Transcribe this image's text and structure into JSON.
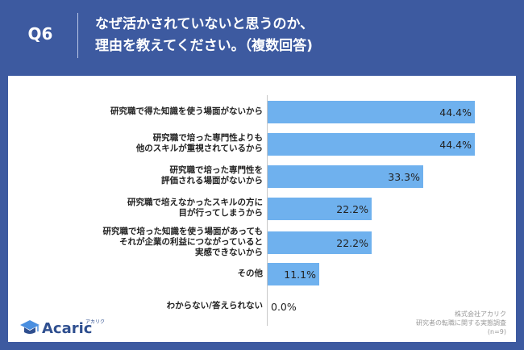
{
  "header": {
    "question": "Q6",
    "title_line1": "なぜ活かされていないと思うのか、",
    "title_line2": "理由を教えてください。（複数回答)"
  },
  "chart_data": {
    "type": "bar",
    "orientation": "horizontal",
    "categories": [
      "研究職で得た知識を使う場面がないから",
      "研究職で培った専門性よりも\n他のスキルが重視されているから",
      "研究職で培った専門性を\n評価される場面がないから",
      "研究職で培えなかったスキルの方に\n目が行ってしまうから",
      "研究職で培った知識を使う場面があっても\nそれが企業の利益につながっていると\n実感できないから",
      "その他",
      "わからない/答えられない"
    ],
    "values": [
      44.4,
      44.4,
      33.3,
      22.2,
      22.2,
      11.1,
      0.0
    ],
    "value_labels": [
      "44.4%",
      "44.4%",
      "33.3%",
      "22.2%",
      "22.2%",
      "11.1%",
      "0.0%"
    ],
    "xlim": [
      0,
      44.4
    ],
    "bar_color": "#6fb1ee",
    "grid": false
  },
  "branding": {
    "logo_text": "Acaric",
    "logo_sub": "アカリク",
    "logo_color": "#2f4f8f"
  },
  "source": {
    "company": "株式会社アカリク",
    "survey": "研究者の転職に関する実態調査",
    "sample": "(n=9)"
  }
}
